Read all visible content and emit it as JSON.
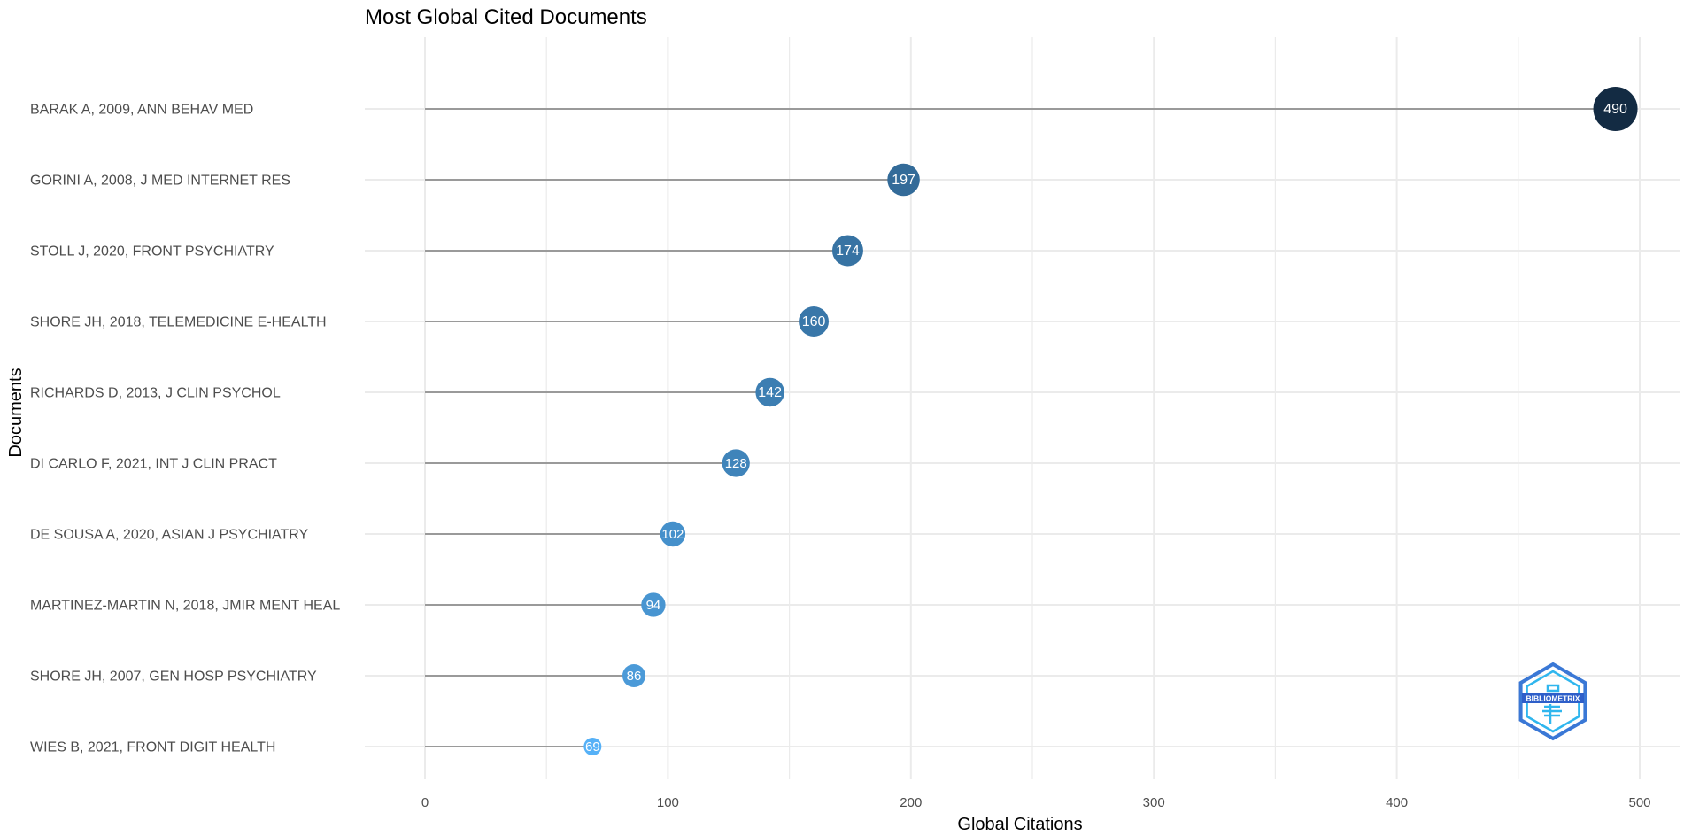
{
  "chart_data": {
    "type": "lollipop",
    "title": "Most Global Cited Documents",
    "xlabel": "Global Citations",
    "ylabel": "Documents",
    "xlim": [
      0,
      500
    ],
    "x_ticks": [
      0,
      100,
      200,
      300,
      400,
      500
    ],
    "grid": true,
    "categories": [
      "BARAK A, 2009, ANN BEHAV MED",
      "GORINI A, 2008, J MED INTERNET RES",
      "STOLL J, 2020, FRONT PSYCHIATRY",
      "SHORE JH, 2018, TELEMEDICINE E-HEALTH",
      "RICHARDS D, 2013, J CLIN PSYCHOL",
      "DI CARLO F, 2021, INT J CLIN PRACT",
      "DE SOUSA A, 2020, ASIAN J PSYCHIATRY",
      "MARTINEZ-MARTIN N, 2018, JMIR MENT HEAL",
      "SHORE JH, 2007, GEN HOSP PSYCHIATRY",
      "WIES B, 2021, FRONT DIGIT HEALTH"
    ],
    "values": [
      490,
      197,
      174,
      160,
      142,
      128,
      102,
      94,
      86,
      69
    ],
    "colors": {
      "low": "#56b1f7",
      "high": "#132b43",
      "stem": "#7f7f7f",
      "grid": "#ebebeb"
    }
  },
  "logo": {
    "text": "BIBLIOMETRIX"
  }
}
